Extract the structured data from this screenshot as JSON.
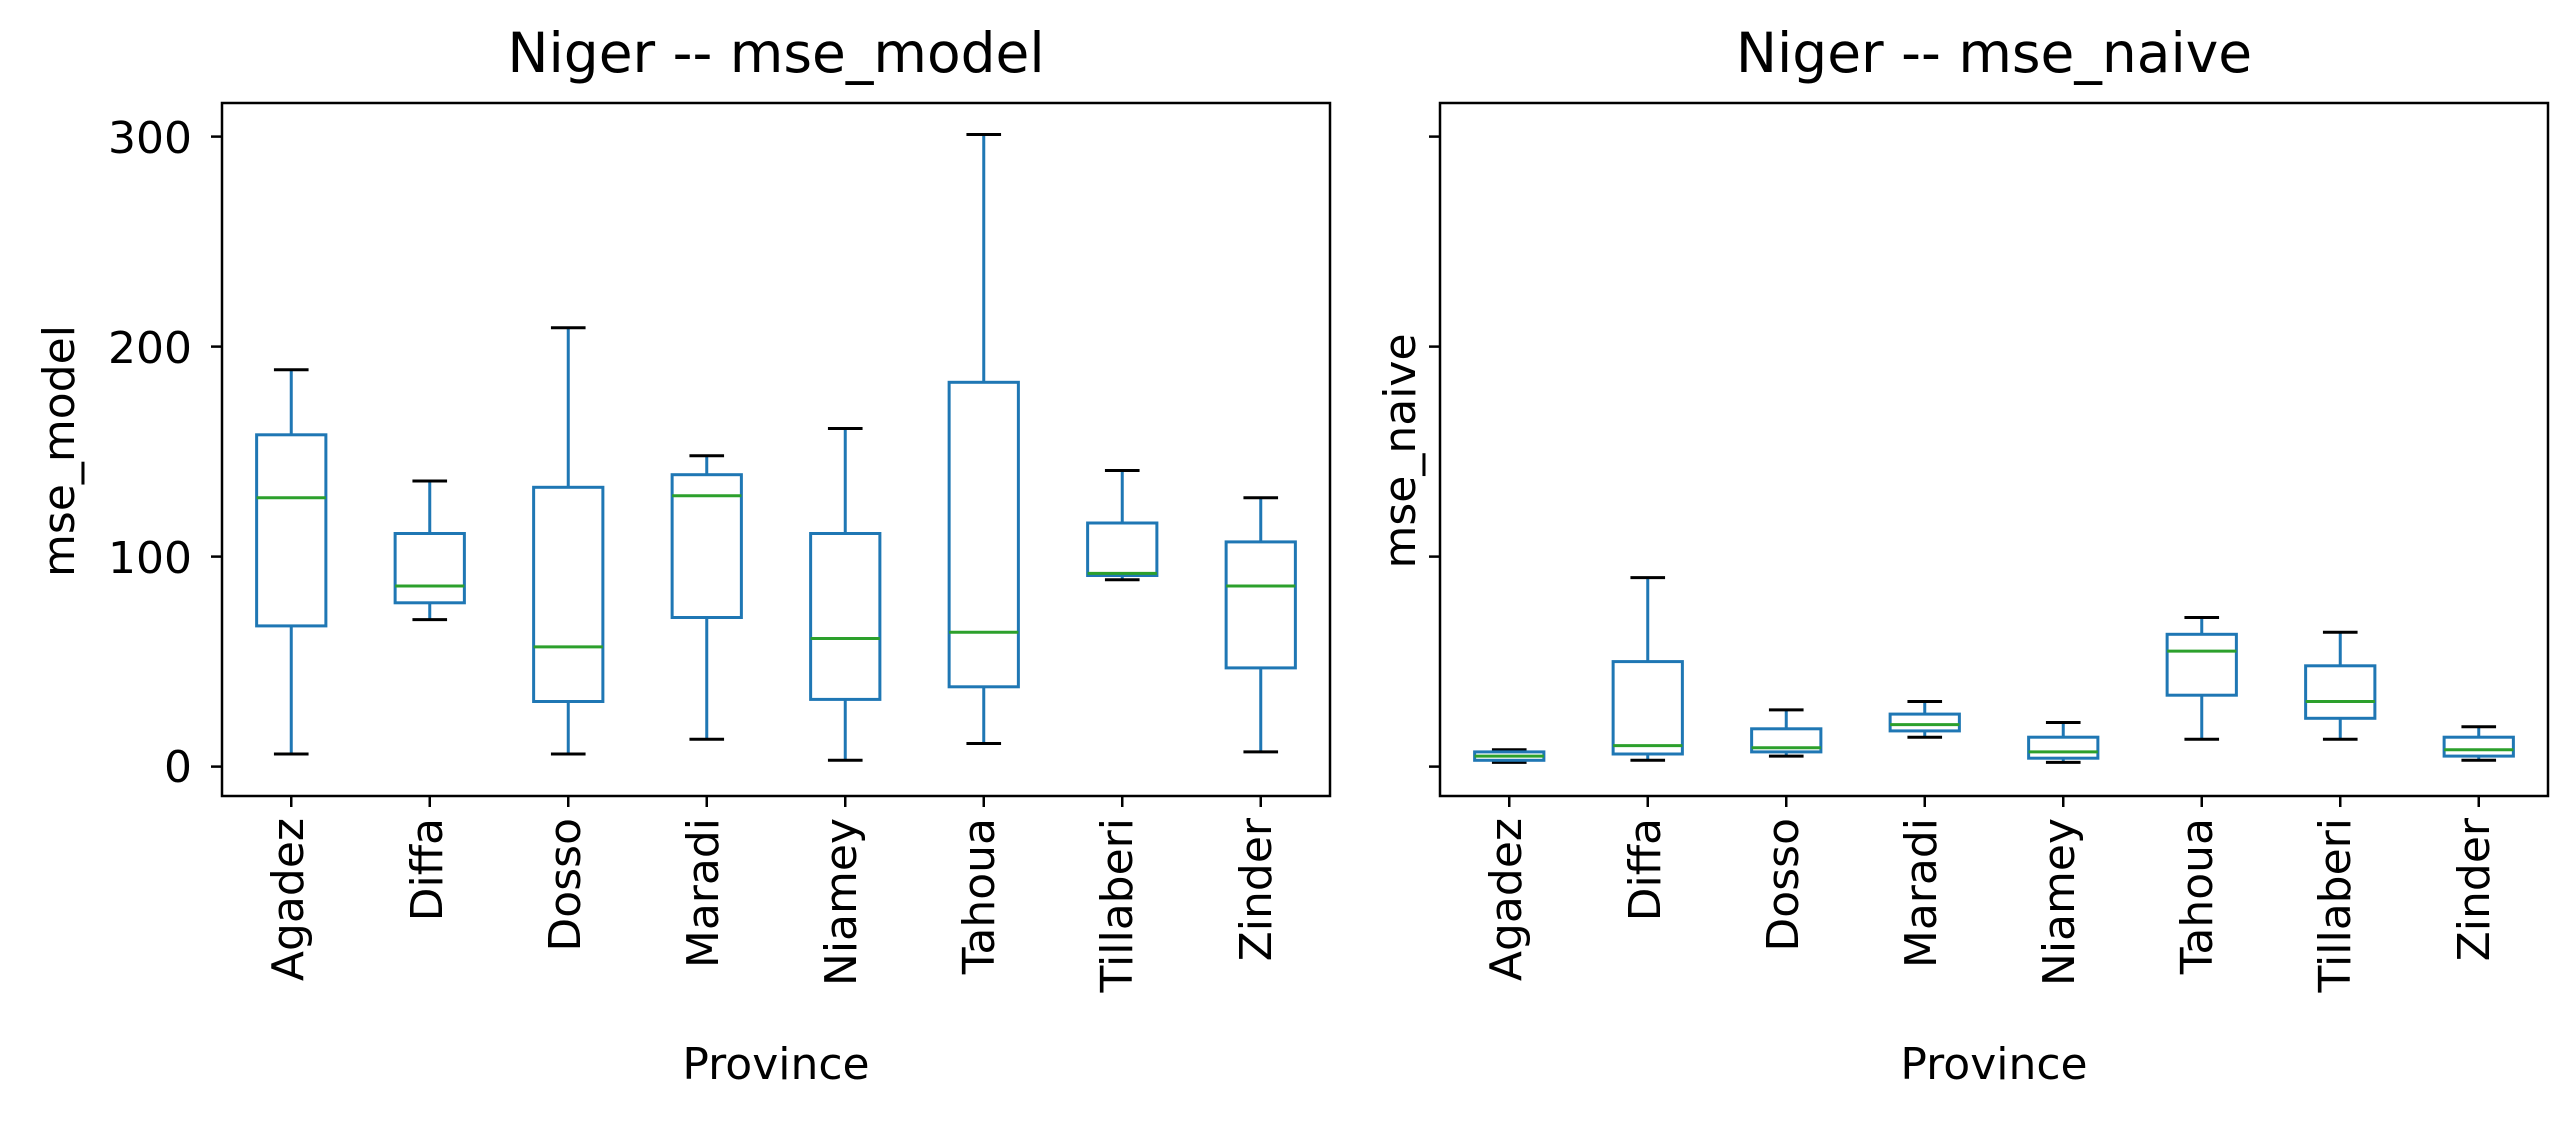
{
  "chart_data": [
    {
      "type": "box",
      "title": "Niger -- mse_model",
      "xlabel": "Province",
      "ylabel": "mse_model",
      "ylim": [
        -14,
        316
      ],
      "yticks": [
        0,
        100,
        200,
        300
      ],
      "ytick_labels": [
        "0",
        "100",
        "200",
        "300"
      ],
      "grid": false,
      "categories": [
        "Agadez",
        "Diffa",
        "Dosso",
        "Maradi",
        "Niamey",
        "Tahoua",
        "Tillaberi",
        "Zinder"
      ],
      "boxes": [
        {
          "whislo": 6,
          "q1": 67,
          "med": 128,
          "q3": 158,
          "whishi": 189
        },
        {
          "whislo": 70,
          "q1": 78,
          "med": 86,
          "q3": 111,
          "whishi": 136
        },
        {
          "whislo": 6,
          "q1": 31,
          "med": 57,
          "q3": 133,
          "whishi": 209
        },
        {
          "whislo": 13,
          "q1": 71,
          "med": 129,
          "q3": 139,
          "whishi": 148
        },
        {
          "whislo": 3,
          "q1": 32,
          "med": 61,
          "q3": 111,
          "whishi": 161
        },
        {
          "whislo": 11,
          "q1": 38,
          "med": 64,
          "q3": 183,
          "whishi": 301
        },
        {
          "whislo": 89,
          "q1": 91,
          "med": 92,
          "q3": 116,
          "whishi": 141
        },
        {
          "whislo": 7,
          "q1": 47,
          "med": 86,
          "q3": 107,
          "whishi": 128
        }
      ]
    },
    {
      "type": "box",
      "title": "Niger -- mse_naive",
      "xlabel": "Province",
      "ylabel": "mse_naive",
      "ylim": [
        -14,
        316
      ],
      "yticks": [
        0,
        100,
        200,
        300
      ],
      "ytick_labels": [
        "",
        "",
        "",
        ""
      ],
      "grid": false,
      "categories": [
        "Agadez",
        "Diffa",
        "Dosso",
        "Maradi",
        "Niamey",
        "Tahoua",
        "Tillaberi",
        "Zinder"
      ],
      "boxes": [
        {
          "whislo": 2,
          "q1": 3,
          "med": 5,
          "q3": 7,
          "whishi": 8
        },
        {
          "whislo": 3,
          "q1": 6,
          "med": 10,
          "q3": 50,
          "whishi": 90
        },
        {
          "whislo": 5,
          "q1": 7,
          "med": 9,
          "q3": 18,
          "whishi": 27
        },
        {
          "whislo": 14,
          "q1": 17,
          "med": 20,
          "q3": 25,
          "whishi": 31
        },
        {
          "whislo": 2,
          "q1": 4,
          "med": 7,
          "q3": 14,
          "whishi": 21
        },
        {
          "whislo": 13,
          "q1": 34,
          "med": 55,
          "q3": 63,
          "whishi": 71
        },
        {
          "whislo": 13,
          "q1": 23,
          "med": 31,
          "q3": 48,
          "whishi": 64
        },
        {
          "whislo": 3,
          "q1": 5,
          "med": 8,
          "q3": 14,
          "whishi": 19
        }
      ]
    }
  ],
  "colors": {
    "box": "#1f77b4",
    "median": "#2ca02c",
    "cap": "#000000",
    "axes": "#000000"
  }
}
